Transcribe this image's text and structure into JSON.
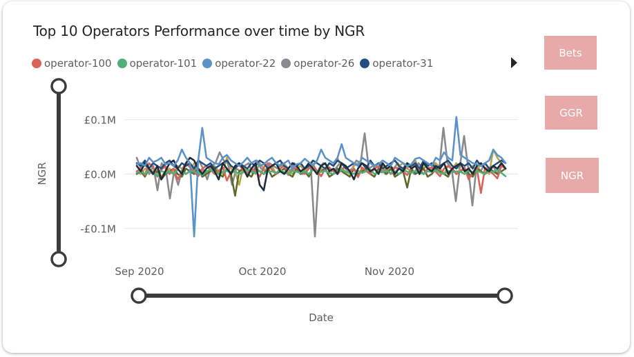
{
  "buttons": {
    "bets": "Bets",
    "ggr": "GGR",
    "ngr": "NGR"
  },
  "colors": {
    "operator-100": "#d9625b",
    "operator-101": "#4fb07a",
    "operator-22": "#5b93c9",
    "operator-26": "#8a8a8e",
    "operator-31": "#274d7e",
    "series-6": "#1f2c38",
    "series-7": "#b7a64f",
    "series-8": "#5d6b2a",
    "button": "#e8aaa9"
  },
  "legend": [
    "operator-100",
    "operator-101",
    "operator-22",
    "operator-26",
    "operator-31"
  ],
  "chart_data": {
    "type": "line",
    "title": "Top 10 Operators Performance over time by NGR",
    "xlabel": "Date",
    "ylabel": "NGR",
    "x_start": "2020-09-01",
    "x_end": "2020-11-30",
    "xticks": [
      {
        "label": "Sep 2020",
        "date": "2020-09-01"
      },
      {
        "label": "Oct 2020",
        "date": "2020-10-01"
      },
      {
        "label": "Nov 2020",
        "date": "2020-11-01"
      }
    ],
    "yticks": [
      {
        "label": "£0.1M",
        "value": 0.1
      },
      {
        "label": "£0.0M",
        "value": 0.0
      },
      {
        "label": "-£0.1M",
        "value": -0.1
      }
    ],
    "ylim": [
      -0.13,
      0.13
    ],
    "grid": true,
    "legend_position": "top-left",
    "series": [
      {
        "name": "operator-100",
        "values": [
          0.005,
          0.01,
          -0.002,
          0.02,
          0.012,
          -0.005,
          0.008,
          0.015,
          0.0,
          0.01,
          -0.01,
          0.005,
          0.02,
          0.012,
          0.004,
          -0.004,
          0.01,
          0.015,
          0.008,
          0.0,
          0.006,
          0.012,
          -0.012,
          0.004,
          0.01,
          0.018,
          0.006,
          0.0,
          0.01,
          0.005,
          -0.005,
          0.012,
          0.02,
          0.008,
          0.0,
          0.01,
          0.015,
          -0.002,
          0.008,
          0.012,
          0.004,
          0.0,
          0.01,
          0.016,
          0.006,
          -0.004,
          0.01,
          0.012,
          0.005,
          0.0,
          0.008,
          0.015,
          0.004,
          0.01,
          -0.006,
          0.012,
          0.006,
          0.0,
          0.01,
          0.014,
          0.004,
          0.008,
          0.0,
          0.012,
          0.01,
          0.005,
          -0.002,
          0.01,
          0.016,
          0.008,
          0.0,
          0.01,
          0.012,
          0.004,
          -0.004,
          0.01,
          0.015,
          0.008,
          0.0,
          0.006,
          0.012,
          -0.01,
          0.004,
          0.01,
          -0.035,
          0.012,
          0.006,
          0.0,
          -0.008,
          0.015,
          0.01
        ]
      },
      {
        "name": "operator-101",
        "values": [
          0.002,
          0.005,
          0.0,
          0.008,
          0.004,
          -0.003,
          0.006,
          0.002,
          0.005,
          0.0,
          0.008,
          0.003,
          0.0,
          0.006,
          0.004,
          0.002,
          -0.002,
          0.005,
          0.008,
          0.003,
          0.0,
          0.004,
          0.006,
          0.002,
          0.005,
          0.0,
          0.003,
          0.008,
          0.004,
          0.002,
          0.006,
          0.0,
          0.004,
          0.005,
          0.002,
          0.008,
          0.003,
          0.0,
          0.006,
          0.004,
          0.002,
          0.005,
          0.0,
          0.008,
          0.003,
          0.004,
          0.006,
          0.002,
          0.0,
          0.005,
          0.008,
          0.003,
          0.004,
          0.0,
          0.006,
          0.002,
          0.005,
          0.008,
          0.0,
          0.004,
          0.003,
          0.006,
          0.002,
          0.005,
          0.0,
          0.008,
          0.004,
          0.002,
          0.006,
          0.003,
          0.0,
          0.005,
          0.004,
          0.008,
          0.002,
          0.0,
          0.006,
          0.003,
          0.005,
          0.004,
          0.0,
          0.008,
          0.002,
          0.006,
          0.003,
          0.0,
          0.005,
          0.004,
          0.008,
          0.002,
          -0.004
        ]
      },
      {
        "name": "operator-22",
        "values": [
          0.018,
          0.02,
          0.015,
          0.03,
          0.022,
          0.025,
          0.03,
          0.018,
          0.02,
          0.015,
          0.025,
          0.045,
          0.03,
          0.02,
          -0.115,
          0.025,
          0.085,
          0.03,
          0.025,
          0.02,
          0.018,
          0.03,
          0.035,
          0.025,
          0.02,
          0.015,
          0.022,
          0.03,
          0.02,
          0.025,
          0.015,
          0.018,
          0.025,
          0.03,
          0.02,
          0.015,
          0.02,
          0.025,
          0.01,
          0.018,
          0.02,
          0.028,
          0.022,
          0.015,
          0.025,
          0.045,
          0.03,
          0.025,
          0.02,
          0.03,
          0.055,
          0.03,
          0.025,
          0.02,
          0.015,
          0.03,
          0.025,
          0.02,
          0.015,
          0.018,
          0.025,
          0.02,
          0.015,
          0.03,
          0.025,
          0.02,
          0.015,
          0.018,
          0.028,
          0.03,
          0.025,
          0.02,
          0.015,
          0.03,
          0.025,
          0.04,
          0.03,
          0.025,
          0.105,
          0.035,
          0.03,
          0.025,
          0.02,
          0.018,
          0.015,
          0.02,
          0.025,
          0.045,
          0.035,
          0.03,
          0.02
        ]
      },
      {
        "name": "operator-26",
        "values": [
          0.03,
          0.01,
          0.02,
          0.0,
          0.015,
          -0.03,
          0.02,
          0.01,
          -0.045,
          0.005,
          -0.02,
          0.01,
          0.02,
          0.015,
          0.005,
          0.025,
          0.01,
          -0.01,
          0.015,
          0.02,
          0.04,
          0.025,
          0.02,
          -0.02,
          0.01,
          0.005,
          0.015,
          0.02,
          0.0,
          0.025,
          0.01,
          0.005,
          0.02,
          0.015,
          0.01,
          0.02,
          0.015,
          0.005,
          0.02,
          0.01,
          0.0,
          0.01,
          0.015,
          -0.115,
          0.01,
          0.02,
          0.015,
          0.005,
          0.01,
          0.02,
          0.015,
          0.005,
          0.01,
          0.025,
          0.02,
          0.075,
          0.01,
          0.015,
          0.005,
          0.02,
          0.0,
          0.015,
          0.01,
          0.02,
          0.005,
          0.01,
          0.015,
          0.0,
          0.02,
          0.01,
          0.015,
          0.005,
          0.02,
          0.01,
          0.085,
          0.02,
          0.01,
          -0.05,
          0.015,
          0.07,
          0.01,
          -0.058,
          0.015,
          0.005,
          0.02,
          0.01,
          0.015,
          0.0,
          0.02,
          0.01
        ]
      },
      {
        "name": "operator-31",
        "values": [
          0.02,
          0.015,
          0.025,
          0.01,
          0.02,
          0.015,
          0.01,
          0.02,
          0.025,
          0.015,
          0.01,
          0.02,
          0.015,
          0.02,
          0.01,
          0.025,
          0.02,
          0.015,
          0.02,
          0.01,
          0.015,
          0.02,
          0.025,
          0.015,
          0.01,
          0.02,
          0.015,
          0.01,
          0.02,
          0.015,
          0.025,
          0.02,
          0.01,
          0.015,
          0.02,
          0.025,
          0.015,
          0.01,
          0.02,
          0.015,
          0.02,
          0.01,
          0.015,
          0.025,
          0.02,
          0.015,
          0.01,
          0.02,
          0.015,
          0.025,
          0.02,
          0.01,
          0.015,
          0.02,
          0.015,
          0.02,
          0.01,
          0.025,
          0.015,
          0.02,
          0.01,
          0.015,
          0.02,
          0.025,
          0.015,
          0.01,
          0.02,
          0.015,
          0.02,
          0.01,
          0.025,
          0.015,
          0.02,
          0.01,
          0.015,
          0.02,
          0.025,
          0.015,
          0.01,
          0.02,
          0.015,
          0.02,
          0.01,
          0.025,
          0.015,
          0.02,
          0.01,
          0.015,
          0.02,
          0.025,
          0.02
        ]
      },
      {
        "name": "",
        "values": [
          0.015,
          0.005,
          0.02,
          0.01,
          0.0,
          0.015,
          -0.01,
          0.005,
          0.02,
          0.025,
          0.01,
          0.0,
          0.02,
          0.03,
          0.025,
          0.01,
          0.0,
          0.01,
          0.015,
          0.005,
          -0.01,
          0.02,
          0.01,
          0.0,
          0.015,
          0.02,
          0.01,
          -0.005,
          0.01,
          0.02,
          -0.02,
          -0.03,
          0.01,
          0.015,
          0.02,
          0.005,
          0.0,
          0.01,
          0.02,
          0.015,
          0.005,
          0.01,
          0.02,
          0.01,
          0.0,
          0.015,
          0.02,
          0.005,
          0.01,
          0.0,
          0.02,
          0.015,
          0.005,
          -0.01,
          0.01,
          0.02,
          0.015,
          0.005,
          0.01,
          0.0,
          0.02,
          0.01,
          0.015,
          0.0,
          0.01,
          0.005,
          0.02,
          0.01,
          0.015,
          0.0,
          0.02,
          0.01,
          0.005,
          0.015,
          0.01,
          0.02,
          0.0,
          0.01,
          0.015,
          0.02,
          0.005,
          0.01,
          0.0,
          0.015,
          0.02,
          0.01,
          0.005,
          0.015,
          0.01,
          0.02,
          0.01
        ]
      },
      {
        "name": "",
        "values": [
          0.005,
          0.0,
          0.01,
          0.005,
          0.0,
          0.008,
          -0.005,
          0.005,
          0.01,
          0.0,
          0.015,
          0.01,
          0.0,
          0.005,
          0.02,
          0.01,
          0.005,
          0.0,
          0.01,
          0.015,
          0.005,
          0.0,
          0.03,
          0.01,
          0.005,
          -0.02,
          0.015,
          0.005,
          0.01,
          0.0,
          0.02,
          0.01,
          0.005,
          0.015,
          0.0,
          0.01,
          0.02,
          0.005,
          0.0,
          0.01,
          0.015,
          0.005,
          0.01,
          0.02,
          0.0,
          0.01,
          0.005,
          0.02,
          0.015,
          0.03,
          0.01,
          0.005,
          0.0,
          0.015,
          0.02,
          0.01,
          0.005,
          0.0,
          0.01,
          0.02,
          0.015,
          0.005,
          0.01,
          0.0,
          0.015,
          0.02,
          0.01,
          0.005,
          0.025,
          0.0,
          0.01,
          0.015,
          0.005,
          0.02,
          0.01,
          0.0,
          0.015,
          0.01,
          0.02,
          0.005,
          0.0,
          0.01,
          0.015,
          0.005,
          0.02,
          0.01,
          0.0,
          0.045,
          0.03,
          0.02,
          0.01
        ]
      },
      {
        "name": "",
        "values": [
          0.0,
          0.005,
          -0.005,
          0.01,
          0.0,
          0.005,
          -0.01,
          0.0,
          0.005,
          0.01,
          0.0,
          -0.005,
          0.01,
          0.005,
          0.0,
          0.01,
          -0.005,
          0.0,
          0.005,
          0.01,
          0.0,
          -0.005,
          0.01,
          0.0,
          -0.04,
          0.005,
          0.01,
          0.0,
          -0.005,
          0.01,
          0.005,
          0.0,
          0.01,
          -0.005,
          0.0,
          0.005,
          0.01,
          0.0,
          -0.005,
          0.01,
          0.0,
          0.005,
          -0.005,
          0.01,
          0.0,
          0.005,
          0.01,
          -0.005,
          0.0,
          0.01,
          0.005,
          0.0,
          -0.005,
          0.01,
          0.0,
          0.005,
          0.01,
          0.0,
          -0.005,
          0.01,
          0.005,
          0.0,
          0.01,
          -0.005,
          0.0,
          0.005,
          -0.025,
          0.01,
          0.0,
          0.005,
          0.01,
          -0.005,
          0.0,
          0.01,
          0.005,
          0.0,
          -0.005,
          0.01,
          0.0,
          0.005,
          0.01,
          0.0,
          -0.005,
          0.01,
          0.005,
          0.0,
          0.01,
          0.005,
          0.0,
          0.005,
          0.01
        ]
      }
    ]
  }
}
